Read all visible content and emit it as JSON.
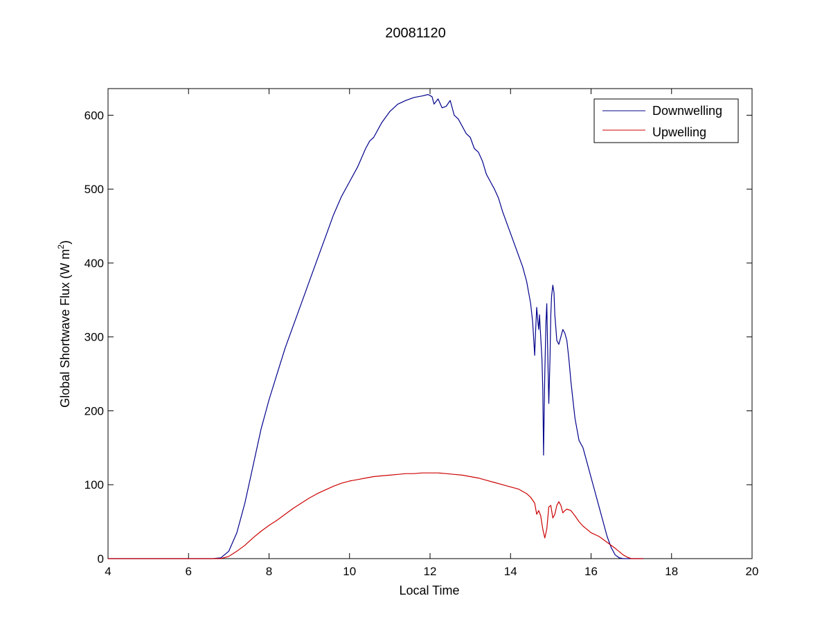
{
  "chart_data": {
    "type": "line",
    "title": "20081120",
    "xlabel": "Local Time",
    "ylabel_main": "Global Shortwave Flux (W m",
    "ylabel_sup": "2",
    "ylabel_tail": ")",
    "xlim": [
      4,
      20
    ],
    "ylim": [
      0,
      636
    ],
    "xticks": [
      4,
      6,
      8,
      10,
      12,
      14,
      16,
      18,
      20
    ],
    "yticks": [
      0,
      100,
      200,
      300,
      400,
      500,
      600
    ],
    "grid": false,
    "legend_position": "top-right",
    "series": [
      {
        "name": "Downwelling",
        "color": "#00008b",
        "x": [
          4.0,
          4.2,
          4.9,
          5.1,
          6.5,
          6.6,
          6.8,
          7.0,
          7.2,
          7.4,
          7.6,
          7.8,
          8.0,
          8.2,
          8.4,
          8.6,
          8.8,
          8.9,
          9.0,
          9.2,
          9.4,
          9.6,
          9.8,
          10.0,
          10.2,
          10.4,
          10.5,
          10.6,
          10.8,
          11.0,
          11.2,
          11.4,
          11.6,
          11.8,
          11.95,
          12.05,
          12.1,
          12.2,
          12.3,
          12.4,
          12.5,
          12.6,
          12.7,
          12.8,
          12.9,
          13.0,
          13.1,
          13.2,
          13.3,
          13.4,
          13.5,
          13.6,
          13.7,
          13.8,
          13.9,
          14.0,
          14.1,
          14.2,
          14.3,
          14.4,
          14.5,
          14.55,
          14.6,
          14.62,
          14.65,
          14.68,
          14.7,
          14.72,
          14.75,
          14.78,
          14.8,
          14.82,
          14.85,
          14.88,
          14.9,
          14.92,
          14.95,
          14.98,
          15.0,
          15.02,
          15.05,
          15.08,
          15.1,
          15.15,
          15.2,
          15.25,
          15.3,
          15.35,
          15.4,
          15.45,
          15.5,
          15.55,
          15.6,
          15.7,
          15.8,
          15.9,
          16.0,
          16.1,
          16.2,
          16.3,
          16.4,
          16.5,
          16.6,
          16.7,
          16.8,
          16.9,
          17.0,
          17.1,
          17.2,
          17.3
        ],
        "y": [
          0,
          0,
          0,
          0,
          0,
          0,
          1,
          10,
          35,
          75,
          125,
          175,
          215,
          250,
          285,
          315,
          345,
          360,
          375,
          405,
          435,
          465,
          490,
          510,
          530,
          555,
          565,
          570,
          590,
          605,
          615,
          620,
          624,
          626,
          628,
          625,
          615,
          622,
          610,
          612,
          620,
          600,
          595,
          585,
          575,
          570,
          555,
          550,
          538,
          520,
          510,
          500,
          488,
          470,
          455,
          440,
          425,
          410,
          395,
          375,
          345,
          320,
          275,
          305,
          340,
          320,
          310,
          330,
          300,
          270,
          230,
          140,
          250,
          320,
          345,
          290,
          210,
          270,
          330,
          355,
          370,
          360,
          330,
          295,
          290,
          300,
          310,
          305,
          295,
          270,
          240,
          215,
          190,
          160,
          150,
          130,
          110,
          90,
          70,
          50,
          30,
          15,
          5,
          1,
          0,
          0,
          0,
          0,
          0,
          0
        ],
        "x_note": ""
      },
      {
        "name": "Upwelling",
        "color": "#cc0000",
        "x": [
          4.0,
          4.2,
          4.9,
          5.1,
          6.5,
          6.8,
          7.0,
          7.2,
          7.4,
          7.6,
          7.8,
          8.0,
          8.2,
          8.4,
          8.6,
          8.8,
          9.0,
          9.2,
          9.4,
          9.6,
          9.8,
          10.0,
          10.2,
          10.4,
          10.6,
          10.8,
          11.0,
          11.2,
          11.4,
          11.6,
          11.8,
          12.0,
          12.2,
          12.4,
          12.6,
          12.8,
          13.0,
          13.2,
          13.4,
          13.6,
          13.8,
          14.0,
          14.2,
          14.4,
          14.5,
          14.6,
          14.65,
          14.7,
          14.75,
          14.8,
          14.85,
          14.9,
          14.95,
          15.0,
          15.05,
          15.1,
          15.15,
          15.2,
          15.25,
          15.3,
          15.35,
          15.4,
          15.5,
          15.6,
          15.7,
          15.8,
          16.0,
          16.2,
          16.4,
          16.6,
          16.8,
          16.9,
          17.0,
          17.1,
          17.2,
          17.3
        ],
        "y": [
          0,
          0,
          0,
          0,
          0,
          0,
          3,
          10,
          18,
          28,
          37,
          45,
          52,
          60,
          68,
          75,
          82,
          88,
          93,
          98,
          102,
          105,
          107,
          109,
          111,
          112,
          113,
          114,
          115,
          115,
          116,
          116,
          116,
          115,
          114,
          113,
          111,
          109,
          106,
          103,
          100,
          97,
          94,
          88,
          83,
          75,
          60,
          65,
          58,
          40,
          28,
          40,
          70,
          72,
          55,
          60,
          72,
          77,
          72,
          62,
          65,
          67,
          65,
          58,
          50,
          44,
          35,
          30,
          22,
          14,
          5,
          2,
          0,
          0,
          0,
          0
        ],
        "x_note": ""
      }
    ]
  }
}
